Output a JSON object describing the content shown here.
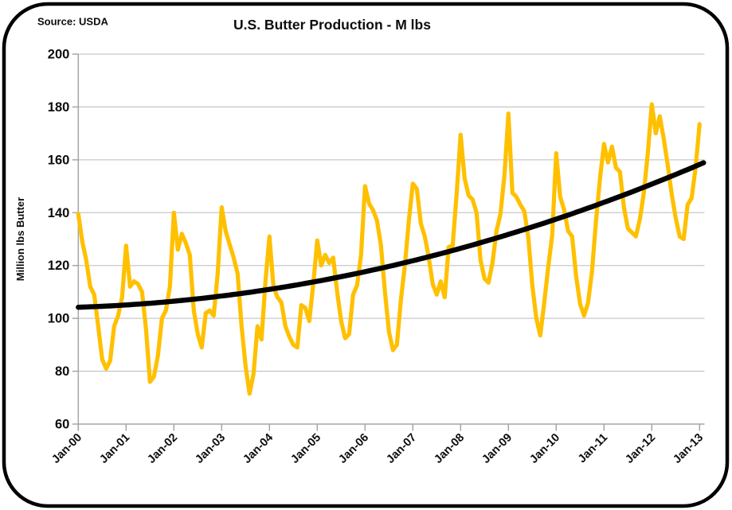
{
  "chart": {
    "title": "U.S. Butter Production - M lbs",
    "source": "Source: USDA",
    "ylabel": "Million lbs Butter"
  },
  "style": {
    "background": "#FFFFFF",
    "border_color": "#000000",
    "grid_color": "#C8C8C8",
    "axis_color": "#A6A6A6",
    "text_color": "#0D0D0D",
    "production_color": "#FFC000",
    "trend_color": "#000000"
  },
  "chart_data": {
    "type": "line",
    "title": "U.S. Butter Production - M lbs",
    "source": "Source: USDA",
    "xlabel": "",
    "ylabel": "Million lbs Butter",
    "ylim": [
      60,
      200
    ],
    "yticks": [
      200,
      180,
      160,
      140,
      120,
      100,
      80,
      60
    ],
    "grid": "horizontal-only",
    "legend": "none",
    "x_unit": "month",
    "x_range": [
      "Jan-2000",
      "Jan-2013"
    ],
    "x_tick_labels": [
      "Jan-00",
      "Jan-01",
      "Jan-02",
      "Jan-03",
      "Jan-04",
      "Jan-05",
      "Jan-06",
      "Jan-07",
      "Jan-08",
      "Jan-09",
      "Jan-10",
      "Jan-11",
      "Jan-12",
      "Jan-13"
    ],
    "series": [
      {
        "name": "monthly-butter-production",
        "color": "#FFC000",
        "line_width": 5.2,
        "values": [
          139.5,
          129,
          122,
          112,
          109,
          97,
          84.5,
          81,
          84,
          97,
          101,
          108,
          127.5,
          112,
          114,
          113,
          110,
          96,
          76,
          78,
          86,
          100,
          103,
          112,
          140,
          126,
          132,
          128.5,
          124,
          103,
          94,
          89,
          102,
          103,
          101,
          117,
          142,
          133,
          128,
          123,
          117,
          97,
          82,
          71.5,
          79,
          97,
          92,
          114,
          131,
          112,
          108,
          106,
          97,
          93,
          90,
          89,
          105,
          104,
          99,
          113,
          129.5,
          120,
          124,
          121,
          123,
          110,
          99,
          92.5,
          94,
          109,
          112.5,
          124,
          150,
          143.5,
          141,
          137,
          127.5,
          110,
          95,
          88,
          90,
          107,
          120,
          137,
          151,
          149,
          136,
          131,
          123,
          113,
          109,
          114,
          108,
          127,
          127.5,
          147,
          169.5,
          153,
          146.5,
          145,
          140,
          122,
          115,
          113.5,
          121,
          133,
          139.5,
          154,
          177.5,
          147.5,
          146,
          143,
          140.5,
          130.5,
          112.5,
          100,
          93.5,
          106,
          119.5,
          131.5,
          162.5,
          146,
          141,
          133,
          131,
          116,
          105.5,
          101,
          106,
          118,
          137,
          153,
          166,
          159,
          165,
          157,
          155.5,
          142,
          134,
          132.5,
          131,
          137.5,
          147.5,
          162.5,
          181,
          170,
          176.5,
          168,
          158,
          147,
          138,
          131,
          130,
          143,
          145.5,
          157,
          173.5
        ]
      },
      {
        "name": "polynomial-trend",
        "color": "#000000",
        "line_width": 6.4,
        "fit": {
          "kind": "quadratic",
          "intercept": 104.2,
          "linear_per_month": 0.05,
          "quadratic_per_month2": 0.0019,
          "start_value": 104,
          "end_value": 158
        }
      }
    ]
  }
}
